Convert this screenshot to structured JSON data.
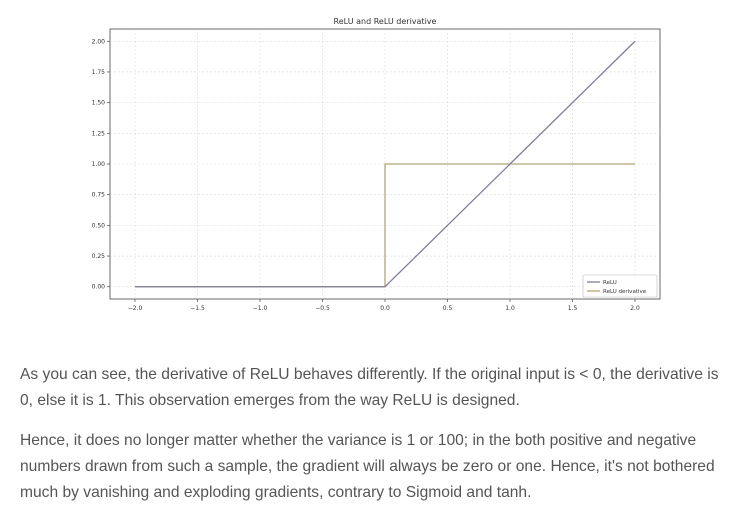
{
  "chart_data": {
    "type": "line",
    "title": "ReLU and ReLU derivative",
    "xlabel": "",
    "ylabel": "",
    "xlim": [
      -2.2,
      2.2
    ],
    "ylim": [
      -0.1,
      2.1
    ],
    "grid": true,
    "legend_position": "lower-right",
    "x_ticks": [
      -2.0,
      -1.5,
      -1.0,
      -0.5,
      0.0,
      0.5,
      1.0,
      1.5,
      2.0
    ],
    "x_tick_labels": [
      "−2.0",
      "−1.5",
      "−1.0",
      "−0.5",
      "0.0",
      "0.5",
      "1.0",
      "1.5",
      "2.0"
    ],
    "y_ticks": [
      0.0,
      0.25,
      0.5,
      0.75,
      1.0,
      1.25,
      1.5,
      1.75,
      2.0
    ],
    "y_tick_labels": [
      "0.00",
      "0.25",
      "0.50",
      "0.75",
      "1.00",
      "1.25",
      "1.50",
      "1.75",
      "2.00"
    ],
    "series": [
      {
        "name": "ReLU",
        "color": "#7f7f9a",
        "points": [
          [
            -2.0,
            0.0
          ],
          [
            0.0,
            0.0
          ],
          [
            2.0,
            2.0
          ]
        ]
      },
      {
        "name": "ReLU derivative",
        "color": "#b5a47a",
        "points": [
          [
            -2.0,
            0.0
          ],
          [
            0.0,
            0.0
          ],
          [
            0.0,
            1.0
          ],
          [
            2.0,
            1.0
          ]
        ]
      }
    ]
  },
  "text": {
    "paragraph1": "As you can see, the derivative of ReLU behaves differently. If the original input is < 0, the derivative is 0, else it is 1. This observation emerges from the way ReLU is designed.",
    "paragraph2": "Hence, it does no longer matter whether the variance is 1 or 100; in the both positive and negative numbers drawn from such a sample, the gradient will always be zero or one. Hence, it's not bothered much by vanishing and exploding gradients, contrary to Sigmoid and tanh."
  }
}
